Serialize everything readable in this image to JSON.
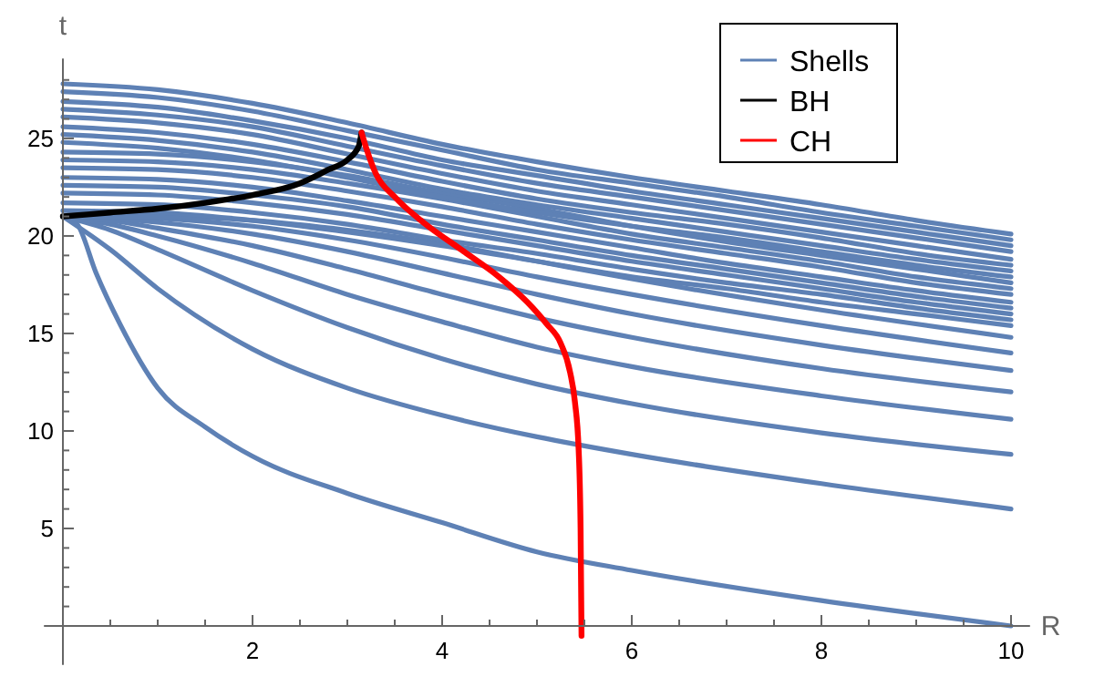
{
  "chart_data": {
    "type": "line",
    "xlabel": "R",
    "ylabel": "t",
    "xlim": [
      -0.2,
      10.2
    ],
    "ylim": [
      -2,
      29.1
    ],
    "xticks": [
      {
        "value": 0.5,
        "label": null
      },
      {
        "value": 1,
        "label": null
      },
      {
        "value": 1.5,
        "label": null
      },
      2,
      {
        "value": 2.5,
        "label": null
      },
      {
        "value": 3,
        "label": null
      },
      {
        "value": 3.5,
        "label": null
      },
      4,
      {
        "value": 4.5,
        "label": null
      },
      {
        "value": 5,
        "label": null
      },
      {
        "value": 5.5,
        "label": null
      },
      6,
      {
        "value": 6.5,
        "label": null
      },
      {
        "value": 7,
        "label": null
      },
      {
        "value": 7.5,
        "label": null
      },
      8,
      {
        "value": 8.5,
        "label": null
      },
      {
        "value": 9,
        "label": null
      },
      {
        "value": 9.5,
        "label": null
      },
      10
    ],
    "yticks": [
      {
        "value": 1,
        "label": null
      },
      {
        "value": 2,
        "label": null
      },
      {
        "value": 3,
        "label": null
      },
      {
        "value": 4,
        "label": null
      },
      5,
      {
        "value": 6,
        "label": null
      },
      {
        "value": 7,
        "label": null
      },
      {
        "value": 8,
        "label": null
      },
      {
        "value": 9,
        "label": null
      },
      10,
      {
        "value": 11,
        "label": null
      },
      {
        "value": 12,
        "label": null
      },
      {
        "value": 13,
        "label": null
      },
      {
        "value": 14,
        "label": null
      },
      15,
      {
        "value": 16,
        "label": null
      },
      {
        "value": 17,
        "label": null
      },
      {
        "value": 18,
        "label": null
      },
      {
        "value": 19,
        "label": null
      },
      20,
      {
        "value": 21,
        "label": null
      },
      {
        "value": 22,
        "label": null
      },
      {
        "value": 23,
        "label": null
      },
      {
        "value": 24,
        "label": null
      },
      25,
      {
        "value": 26,
        "label": null
      },
      {
        "value": 27,
        "label": null
      },
      {
        "value": 28,
        "label": null
      }
    ],
    "legend": "top right",
    "line_style": "solid",
    "marker": "none",
    "series": [
      {
        "name": "Shells",
        "color": "#5e81b5",
        "x": [
          0,
          0.15,
          0.35,
          0.6,
          1,
          1.5,
          2,
          3,
          4,
          5,
          6,
          8,
          10
        ],
        "values": [
          21,
          20.6,
          18.1,
          15.5,
          12.2,
          10.2,
          8.7,
          6.8,
          5.3,
          3.8,
          2.85,
          1.3,
          0
        ]
      },
      {
        "color": "#5e81b5",
        "x": [
          0,
          0.5,
          1,
          2,
          3,
          4,
          5,
          6,
          8,
          10
        ],
        "values": [
          21,
          19.3,
          17.3,
          14.2,
          12.2,
          10.8,
          9.7,
          8.8,
          7.3,
          6.0
        ]
      },
      {
        "color": "#5e81b5",
        "x": [
          0,
          0.5,
          1,
          2,
          3,
          4,
          5,
          6,
          8,
          10
        ],
        "values": [
          21,
          20.3,
          19.3,
          17.2,
          15.3,
          13.7,
          12.4,
          11.4,
          9.9,
          8.8
        ]
      },
      {
        "color": "#5e81b5",
        "x": [
          0,
          0.5,
          1,
          2,
          3,
          4,
          5,
          6,
          8,
          10
        ],
        "values": [
          21,
          20.6,
          20.0,
          18.6,
          17.0,
          15.6,
          14.3,
          13.3,
          11.8,
          10.6
        ]
      },
      {
        "color": "#5e81b5",
        "x": [
          0,
          0.5,
          1,
          2,
          3,
          4,
          5,
          6,
          8,
          10
        ],
        "values": [
          21,
          20.8,
          20.4,
          19.5,
          18.3,
          17.0,
          15.8,
          14.8,
          13.2,
          12.0
        ]
      },
      {
        "color": "#5e81b5",
        "x": [
          0,
          0.5,
          1,
          2,
          3,
          4,
          5,
          6,
          8,
          10
        ],
        "values": [
          21,
          20.9,
          20.7,
          20.1,
          19.2,
          18.1,
          17.0,
          16.0,
          14.4,
          13.1
        ]
      },
      {
        "color": "#5e81b5",
        "x": [
          0,
          0.5,
          1,
          2,
          3,
          4,
          5,
          6,
          8,
          10
        ],
        "values": [
          21,
          21.0,
          20.9,
          20.5,
          19.8,
          18.9,
          17.9,
          17.0,
          15.4,
          14.0
        ]
      },
      {
        "color": "#5e81b5",
        "x": [
          0,
          0.5,
          1,
          2,
          3,
          4,
          5,
          6,
          8,
          10
        ],
        "values": [
          21,
          21.0,
          21.0,
          20.8,
          20.3,
          19.6,
          18.7,
          17.8,
          16.2,
          14.8
        ]
      },
      {
        "color": "#5e81b5",
        "x": [
          0,
          1,
          2,
          3,
          4,
          5,
          6,
          7,
          8,
          9,
          10
        ],
        "values": [
          21.3,
          21.2,
          20.8,
          20.2,
          19.5,
          18.7,
          17.9,
          17.3,
          16.6,
          16.0,
          15.4
        ]
      },
      {
        "color": "#5e81b5",
        "x": [
          0,
          1,
          2,
          3,
          4,
          5,
          6,
          7,
          8,
          9,
          10
        ],
        "values": [
          21.7,
          21.6,
          21.2,
          20.6,
          19.8,
          19.1,
          18.3,
          17.6,
          17.0,
          16.3,
          15.7
        ]
      },
      {
        "color": "#5e81b5",
        "x": [
          0,
          1,
          2,
          3,
          4,
          5,
          6,
          7,
          8,
          9,
          10
        ],
        "values": [
          22.2,
          22.1,
          21.7,
          21.1,
          20.3,
          19.5,
          18.7,
          18.0,
          17.3,
          16.6,
          16.0
        ]
      },
      {
        "color": "#5e81b5",
        "x": [
          0,
          1,
          2,
          3,
          4,
          5,
          6,
          7,
          8,
          9,
          10
        ],
        "values": [
          22.6,
          22.5,
          22.1,
          21.5,
          20.6,
          19.8,
          19.0,
          18.3,
          17.6,
          16.9,
          16.3
        ]
      },
      {
        "color": "#5e81b5",
        "x": [
          0,
          1,
          2,
          3,
          4,
          5,
          6,
          7,
          8,
          9,
          10
        ],
        "values": [
          23.0,
          22.9,
          22.5,
          21.8,
          21.0,
          20.2,
          19.4,
          18.6,
          17.9,
          17.2,
          16.6
        ]
      },
      {
        "color": "#5e81b5",
        "x": [
          0,
          1,
          2,
          3,
          4,
          5,
          6,
          7,
          8,
          9,
          10
        ],
        "values": [
          23.5,
          23.4,
          23.0,
          22.3,
          21.5,
          20.6,
          19.8,
          19.1,
          18.4,
          17.6,
          17.0
        ]
      },
      {
        "color": "#5e81b5",
        "x": [
          0,
          1,
          2,
          3,
          4,
          5,
          6,
          7,
          8,
          9,
          10
        ],
        "values": [
          23.9,
          23.8,
          23.4,
          22.7,
          21.9,
          21.0,
          20.1,
          19.4,
          18.7,
          17.9,
          17.3
        ]
      },
      {
        "color": "#5e81b5",
        "x": [
          0,
          1,
          2,
          3,
          4,
          5,
          6,
          7,
          8,
          9,
          10
        ],
        "values": [
          24.3,
          24.2,
          23.8,
          23.1,
          22.2,
          21.4,
          20.5,
          19.7,
          19.0,
          18.3,
          17.6
        ]
      },
      {
        "color": "#5e81b5",
        "x": [
          0,
          1,
          2,
          3,
          4,
          5,
          6,
          7,
          8,
          9,
          10
        ],
        "values": [
          24.8,
          24.5,
          23.9,
          23.0,
          22.0,
          21.2,
          20.5,
          19.9,
          19.2,
          18.5,
          17.9
        ]
      },
      {
        "color": "#5e81b5",
        "x": [
          0,
          1,
          2,
          3,
          4,
          5,
          6,
          7,
          8,
          9,
          10
        ],
        "values": [
          25.2,
          24.9,
          24.3,
          23.4,
          22.4,
          21.6,
          20.9,
          20.2,
          19.5,
          18.8,
          18.2
        ]
      },
      {
        "color": "#5e81b5",
        "x": [
          0,
          1,
          2,
          3,
          4,
          5,
          6,
          7,
          8,
          9,
          10
        ],
        "values": [
          25.6,
          25.3,
          24.7,
          23.8,
          22.8,
          21.9,
          21.2,
          20.6,
          19.9,
          19.1,
          18.5
        ]
      },
      {
        "color": "#5e81b5",
        "x": [
          0,
          1,
          2,
          3,
          4,
          5,
          6,
          7,
          8,
          9,
          10
        ],
        "values": [
          26.1,
          25.8,
          25.2,
          24.2,
          23.2,
          22.3,
          21.6,
          20.9,
          20.2,
          19.5,
          18.8
        ]
      },
      {
        "color": "#5e81b5",
        "x": [
          0,
          1,
          2,
          3,
          4,
          5,
          6,
          7,
          8,
          9,
          10
        ],
        "values": [
          26.5,
          26.2,
          25.6,
          24.6,
          23.6,
          22.7,
          22.0,
          21.3,
          20.6,
          19.9,
          19.2
        ]
      },
      {
        "color": "#5e81b5",
        "x": [
          0,
          1,
          2,
          3,
          4,
          5,
          6,
          7,
          8,
          9,
          10
        ],
        "values": [
          26.9,
          26.6,
          25.9,
          25.0,
          23.9,
          23.1,
          22.3,
          21.6,
          20.9,
          20.2,
          19.5
        ]
      },
      {
        "color": "#5e81b5",
        "x": [
          0,
          1,
          2,
          3,
          4,
          5,
          6,
          7,
          8,
          9,
          10
        ],
        "values": [
          27.4,
          27.1,
          26.4,
          25.4,
          24.4,
          23.4,
          22.7,
          22.0,
          21.2,
          20.5,
          19.8
        ]
      },
      {
        "color": "#5e81b5",
        "x": [
          0,
          1,
          2,
          3,
          4,
          5,
          6,
          7,
          8,
          9,
          10
        ],
        "values": [
          27.8,
          27.5,
          26.8,
          25.8,
          24.7,
          23.8,
          23.0,
          22.3,
          21.6,
          20.8,
          20.1
        ]
      },
      {
        "name": "BH",
        "color": "#000000",
        "x": [
          0,
          0.5,
          1,
          1.5,
          2,
          2.5,
          2.8,
          3.0,
          3.12,
          3.15
        ],
        "values": [
          21.0,
          21.2,
          21.4,
          21.7,
          22.1,
          22.7,
          23.4,
          23.9,
          24.6,
          25.3
        ]
      },
      {
        "name": "CH",
        "color": "#ff0000",
        "x": [
          3.15,
          3.2,
          3.3,
          3.5,
          3.8,
          4.2,
          4.6,
          4.9,
          5.1,
          5.25,
          5.35,
          5.4,
          5.44,
          5.46,
          5.47
        ],
        "values": [
          25.3,
          24.5,
          23.2,
          22.0,
          20.7,
          19.3,
          17.9,
          16.6,
          15.5,
          14.5,
          13.0,
          11.5,
          9.0,
          5.0,
          -0.5
        ]
      }
    ]
  }
}
